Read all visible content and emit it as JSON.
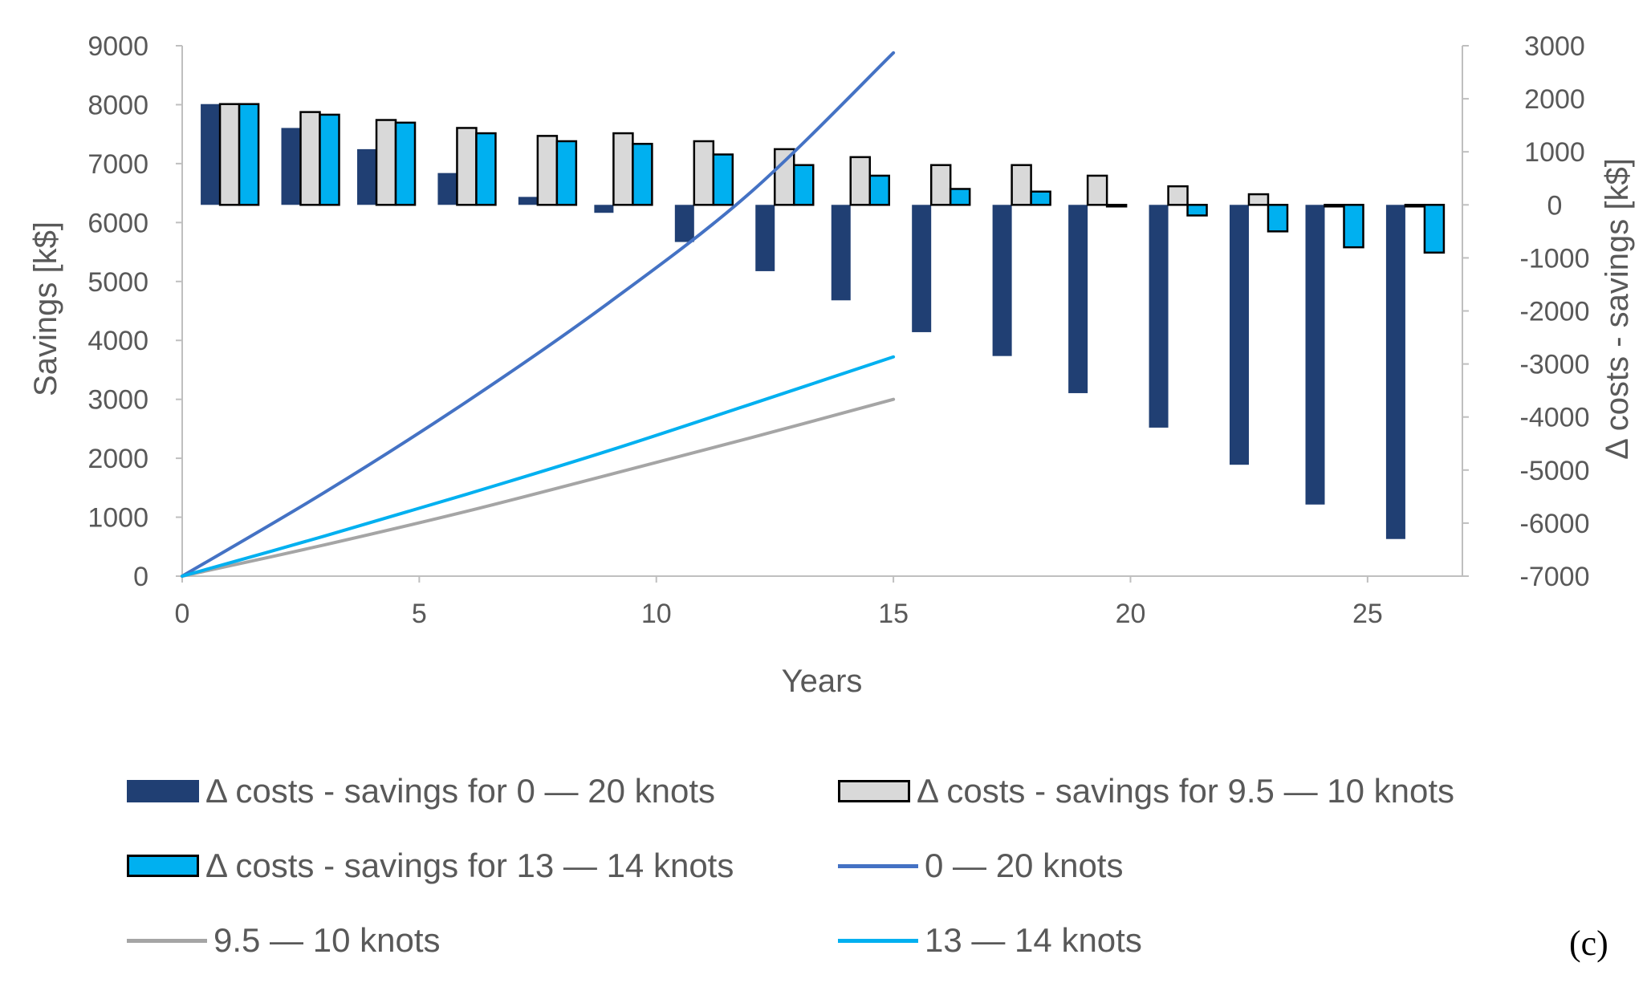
{
  "chart_data": {
    "type": "bar+line",
    "panel_label": "(c)",
    "xlabel": "Years",
    "ylabel_left": "Savings [k$]",
    "ylabel_right": "Δ costs - savings [k$]",
    "xlim": [
      0,
      27
    ],
    "ylim_left": [
      0,
      9000
    ],
    "ylim_right": [
      -7000,
      3000
    ],
    "xticks": [
      "0",
      "5",
      "10",
      "15",
      "20",
      "25"
    ],
    "yticks_left": [
      "0",
      "1000",
      "2000",
      "3000",
      "4000",
      "5000",
      "6000",
      "7000",
      "8000",
      "9000"
    ],
    "yticks_right": [
      "-7000",
      "-6000",
      "-5000",
      "-4000",
      "-3000",
      "-2000",
      "-1000",
      "0",
      "1000",
      "2000",
      "3000"
    ],
    "bar_years": [
      1,
      2.7,
      4.3,
      6,
      7.7,
      9.3,
      11,
      12.7,
      14.3,
      16,
      17.7,
      19.3,
      21,
      22.7,
      24.3,
      26
    ],
    "bar_series": [
      {
        "name": "Δ costs - savings for 0 — 20 knots",
        "color": "#203f73",
        "stroke": "none",
        "values": [
          1900,
          1450,
          1050,
          600,
          150,
          -150,
          -700,
          -1250,
          -1800,
          -2400,
          -2850,
          -3550,
          -4200,
          -4900,
          -5650,
          -6300
        ]
      },
      {
        "name": "Δ costs - savings for 9.5 — 10 knots",
        "color": "#d9d9d9",
        "stroke": "#000000",
        "values": [
          1900,
          1750,
          1600,
          1450,
          1300,
          1350,
          1200,
          1050,
          900,
          750,
          750,
          550,
          350,
          200,
          0,
          0
        ]
      },
      {
        "name": "Δ costs - savings for 13 — 14 knots",
        "color": "#00b0f0",
        "stroke": "#000000",
        "values": [
          1900,
          1700,
          1550,
          1350,
          1200,
          1150,
          950,
          750,
          550,
          300,
          250,
          0,
          -200,
          -500,
          -800,
          -900
        ]
      }
    ],
    "line_series": [
      {
        "name": "0 — 20 knots",
        "color": "#4472c4",
        "x": [
          0,
          3,
          6,
          9,
          12,
          15
        ],
        "values": [
          0,
          1420,
          2960,
          4640,
          6520,
          8880
        ]
      },
      {
        "name": "9.5 — 10 knots",
        "color": "#a5a5a5",
        "x": [
          0,
          3,
          6,
          9,
          12,
          15
        ],
        "values": [
          0,
          530,
          1100,
          1720,
          2350,
          3000
        ]
      },
      {
        "name": "13 — 14 knots",
        "color": "#00b0f0",
        "x": [
          0,
          3,
          6,
          9,
          12,
          15
        ],
        "values": [
          0,
          680,
          1390,
          2130,
          2920,
          3720
        ]
      }
    ]
  }
}
